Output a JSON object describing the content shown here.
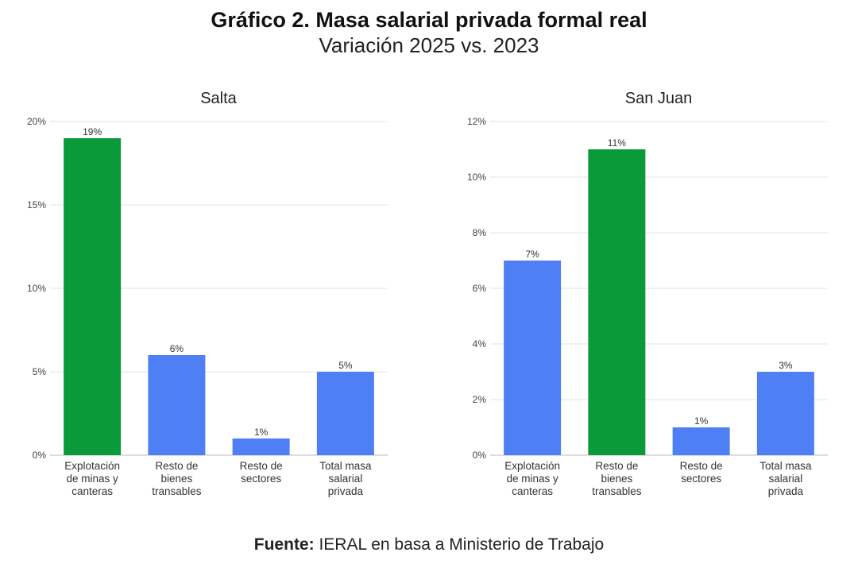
{
  "header": {
    "title": "Gráfico 2. Masa salarial privada formal real",
    "subtitle": "Variación 2025 vs. 2023"
  },
  "colors": {
    "highlight": "#0a9a3a",
    "bar": "#4f7ff5",
    "grid": "#e3e3e3",
    "axis": "#bbbbbb"
  },
  "chart_data": [
    {
      "type": "bar",
      "title": "Salta",
      "categories": [
        [
          "Explotación",
          "de minas y",
          "canteras"
        ],
        [
          "Resto de",
          "bienes",
          "transables"
        ],
        [
          "Resto de",
          "sectores"
        ],
        [
          "Total masa",
          "salarial",
          "privada"
        ]
      ],
      "values": [
        19,
        6,
        1,
        5
      ],
      "value_labels": [
        "19%",
        "6%",
        "1%",
        "5%"
      ],
      "highlight_index": 0,
      "ylim": [
        0,
        20
      ],
      "yticks": [
        0,
        5,
        10,
        15,
        20
      ],
      "ytick_labels": [
        "0%",
        "5%",
        "10%",
        "15%",
        "20%"
      ],
      "grid": true
    },
    {
      "type": "bar",
      "title": "San Juan",
      "categories": [
        [
          "Explotación",
          "de minas y",
          "canteras"
        ],
        [
          "Resto de",
          "bienes",
          "transables"
        ],
        [
          "Resto de",
          "sectores"
        ],
        [
          "Total masa",
          "salarial",
          "privada"
        ]
      ],
      "values": [
        7,
        11,
        1,
        3
      ],
      "value_labels": [
        "7%",
        "11%",
        "1%",
        "3%"
      ],
      "highlight_index": 1,
      "ylim": [
        0,
        12
      ],
      "yticks": [
        0,
        2,
        4,
        6,
        8,
        10,
        12
      ],
      "ytick_labels": [
        "0%",
        "2%",
        "4%",
        "6%",
        "8%",
        "10%",
        "12%"
      ],
      "grid": true
    }
  ],
  "footer": {
    "source_label": "Fuente:",
    "source_text": "IERAL en basa a Ministerio de Trabajo"
  }
}
